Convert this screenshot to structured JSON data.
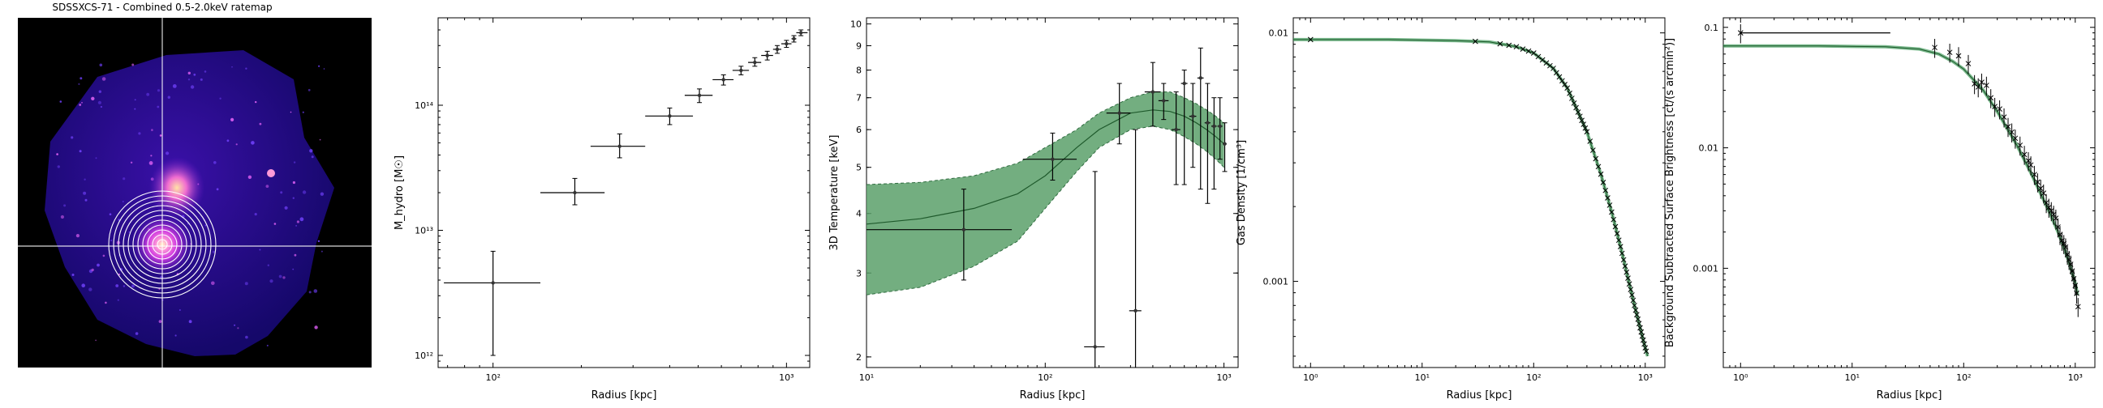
{
  "chart_data": [
    {
      "type": "image",
      "title": "SDSSXCS-71 - Combined 0.5-2.0keV ratemap"
    },
    {
      "type": "scatter",
      "xlabel": "Radius [kpc]",
      "ylabel": "M_hydro [M☉]",
      "xscale": "log",
      "yscale": "log",
      "xlim": [
        65,
        1200
      ],
      "ylim": [
        800000000000.0,
        500000000000000.0
      ],
      "xticks": [
        {
          "v": 100,
          "label": "10²"
        },
        {
          "v": 1000,
          "label": "10³"
        }
      ],
      "yticks": [
        {
          "v": 1000000000000.0,
          "label": "10¹²"
        },
        {
          "v": 10000000000000.0,
          "label": "10¹³"
        },
        {
          "v": 100000000000000.0,
          "label": "10¹⁴"
        }
      ],
      "points": [
        {
          "x": 100,
          "xlo": 68,
          "xhi": 145,
          "y": 3800000000000.0,
          "ylo": 1000000000000.0,
          "yhi": 6800000000000.0
        },
        {
          "x": 190,
          "xlo": 145,
          "xhi": 240,
          "y": 20000000000000.0,
          "ylo": 16000000000000.0,
          "yhi": 26000000000000.0
        },
        {
          "x": 270,
          "xlo": 215,
          "xhi": 330,
          "y": 47000000000000.0,
          "ylo": 38000000000000.0,
          "yhi": 59000000000000.0
        },
        {
          "x": 400,
          "xlo": 330,
          "xhi": 480,
          "y": 82000000000000.0,
          "ylo": 70000000000000.0,
          "yhi": 95000000000000.0
        },
        {
          "x": 505,
          "xlo": 450,
          "xhi": 560,
          "y": 120000000000000.0,
          "ylo": 105000000000000.0,
          "yhi": 135000000000000.0
        },
        {
          "x": 610,
          "xlo": 560,
          "xhi": 660,
          "y": 160000000000000.0,
          "ylo": 145000000000000.0,
          "yhi": 175000000000000.0
        },
        {
          "x": 700,
          "xlo": 655,
          "xhi": 745,
          "y": 190000000000000.0,
          "ylo": 175000000000000.0,
          "yhi": 205000000000000.0
        },
        {
          "x": 780,
          "xlo": 740,
          "xhi": 820,
          "y": 220000000000000.0,
          "ylo": 205000000000000.0,
          "yhi": 240000000000000.0
        },
        {
          "x": 860,
          "xlo": 820,
          "xhi": 900,
          "y": 250000000000000.0,
          "ylo": 230000000000000.0,
          "yhi": 270000000000000.0
        },
        {
          "x": 930,
          "xlo": 900,
          "xhi": 960,
          "y": 280000000000000.0,
          "ylo": 260000000000000.0,
          "yhi": 300000000000000.0
        },
        {
          "x": 1000,
          "xlo": 960,
          "xhi": 1040,
          "y": 310000000000000.0,
          "ylo": 290000000000000.0,
          "yhi": 330000000000000.0
        },
        {
          "x": 1060,
          "xlo": 1040,
          "xhi": 1080,
          "y": 340000000000000.0,
          "ylo": 320000000000000.0,
          "yhi": 360000000000000.0
        },
        {
          "x": 1120,
          "xlo": 1080,
          "xhi": 1180,
          "y": 380000000000000.0,
          "ylo": 360000000000000.0,
          "yhi": 400000000000000.0
        }
      ]
    },
    {
      "type": "line",
      "xlabel": "Radius [kpc]",
      "ylabel": "3D Temperature [keV]",
      "xscale": "log",
      "yscale": "log",
      "xlim": [
        10,
        1200
      ],
      "ylim": [
        1.9,
        10.3
      ],
      "xticks": [
        {
          "v": 10,
          "label": "10¹"
        },
        {
          "v": 100,
          "label": "10²"
        },
        {
          "v": 1000,
          "label": "10³"
        }
      ],
      "yticks": [
        {
          "v": 2,
          "label": "2"
        },
        {
          "v": 3,
          "label": "3"
        },
        {
          "v": 4,
          "label": "4"
        },
        {
          "v": 5,
          "label": "5"
        },
        {
          "v": 6,
          "label": "6"
        },
        {
          "v": 7,
          "label": "7"
        },
        {
          "v": 8,
          "label": "8"
        },
        {
          "v": 9,
          "label": "9"
        },
        {
          "v": 10,
          "label": "10"
        }
      ],
      "model": {
        "x": [
          10,
          20,
          40,
          70,
          100,
          150,
          200,
          300,
          400,
          500,
          600,
          700,
          800,
          900,
          1000
        ],
        "y": [
          3.8,
          3.9,
          4.1,
          4.4,
          4.8,
          5.5,
          6.0,
          6.5,
          6.6,
          6.55,
          6.4,
          6.2,
          6.0,
          5.8,
          5.6
        ],
        "ylo": [
          2.7,
          2.8,
          3.1,
          3.5,
          4.1,
          4.9,
          5.5,
          6.0,
          6.1,
          6.0,
          5.8,
          5.6,
          5.4,
          5.2,
          5.0
        ],
        "yhi": [
          4.6,
          4.65,
          4.8,
          5.1,
          5.5,
          6.0,
          6.5,
          7.0,
          7.2,
          7.2,
          7.0,
          6.8,
          6.6,
          6.4,
          6.2
        ]
      },
      "points": [
        {
          "x": 35,
          "xlo": 10,
          "xhi": 65,
          "y": 3.7,
          "ylo": 2.9,
          "yhi": 4.5
        },
        {
          "x": 110,
          "xlo": 75,
          "xhi": 150,
          "y": 5.2,
          "ylo": 4.7,
          "yhi": 5.9
        },
        {
          "x": 190,
          "xlo": 165,
          "xhi": 215,
          "y": 2.1,
          "ylo": 1.9,
          "yhi": 4.9
        },
        {
          "x": 260,
          "xlo": 220,
          "xhi": 300,
          "y": 6.5,
          "ylo": 5.6,
          "yhi": 7.5
        },
        {
          "x": 320,
          "xlo": 295,
          "xhi": 345,
          "y": 2.5,
          "ylo": 1.9,
          "yhi": 6.0
        },
        {
          "x": 400,
          "xlo": 360,
          "xhi": 440,
          "y": 7.2,
          "ylo": 6.1,
          "yhi": 8.3
        },
        {
          "x": 460,
          "xlo": 430,
          "xhi": 490,
          "y": 6.9,
          "ylo": 6.3,
          "yhi": 7.5
        },
        {
          "x": 540,
          "xlo": 510,
          "xhi": 570,
          "y": 6.0,
          "ylo": 4.6,
          "yhi": 7.2
        },
        {
          "x": 600,
          "xlo": 575,
          "xhi": 625,
          "y": 7.5,
          "ylo": 4.6,
          "yhi": 8.0
        },
        {
          "x": 670,
          "xlo": 640,
          "xhi": 700,
          "y": 6.4,
          "ylo": 5.0,
          "yhi": 7.5
        },
        {
          "x": 740,
          "xlo": 710,
          "xhi": 770,
          "y": 7.7,
          "ylo": 4.5,
          "yhi": 8.9
        },
        {
          "x": 810,
          "xlo": 780,
          "xhi": 840,
          "y": 6.2,
          "ylo": 4.2,
          "yhi": 7.5
        },
        {
          "x": 880,
          "xlo": 850,
          "xhi": 910,
          "y": 6.1,
          "ylo": 4.5,
          "yhi": 7.0
        },
        {
          "x": 950,
          "xlo": 920,
          "xhi": 980,
          "y": 6.1,
          "ylo": 5.2,
          "yhi": 7.0
        },
        {
          "x": 1010,
          "xlo": 985,
          "xhi": 1035,
          "y": 5.6,
          "ylo": 4.9,
          "yhi": 6.2
        }
      ]
    },
    {
      "type": "line",
      "xlabel": "Radius [kpc]",
      "ylabel": "Gas Density [1/cm³]",
      "xscale": "log",
      "yscale": "log",
      "xlim": [
        0.7,
        1500
      ],
      "ylim": [
        0.00045,
        0.0115
      ],
      "xticks": [
        {
          "v": 1,
          "label": "10⁰"
        },
        {
          "v": 10,
          "label": "10¹"
        },
        {
          "v": 100,
          "label": "10²"
        },
        {
          "v": 1000,
          "label": "10³"
        }
      ],
      "yticks": [
        {
          "v": 0.01,
          "label": "0.01"
        },
        {
          "v": 0.001,
          "label": "0.001"
        }
      ],
      "model": {
        "x": [
          0.7,
          5,
          20,
          40,
          70,
          100,
          150,
          200,
          300,
          400,
          500,
          600,
          700,
          800,
          900,
          1000,
          1050
        ],
        "y": [
          0.0094,
          0.0094,
          0.0093,
          0.0092,
          0.0088,
          0.0083,
          0.0072,
          0.006,
          0.004,
          0.0027,
          0.0019,
          0.00138,
          0.00103,
          0.0008,
          0.00065,
          0.00054,
          0.0005
        ]
      },
      "points_x": [
        1,
        30,
        50,
        60,
        70,
        80,
        90,
        100,
        110,
        120,
        130,
        140,
        150,
        160,
        170,
        180,
        190,
        200,
        210,
        220,
        230,
        240,
        250,
        260,
        270,
        280,
        290,
        300,
        320,
        340,
        360,
        380,
        400,
        420,
        440,
        460,
        480,
        500,
        520,
        540,
        560,
        580,
        600,
        620,
        640,
        660,
        680,
        700,
        720,
        740,
        760,
        780,
        800,
        820,
        840,
        860,
        880,
        900,
        920,
        940,
        960,
        980,
        1000,
        1020
      ]
    },
    {
      "type": "line",
      "xlabel": "Radius [kpc]",
      "ylabel": "Background Subtracted Surface Brightness [ct/(s arcmin²)]",
      "xscale": "log",
      "yscale": "log",
      "xlim": [
        0.7,
        1500
      ],
      "ylim": [
        0.00015,
        0.12
      ],
      "xticks": [
        {
          "v": 1,
          "label": "10⁰"
        },
        {
          "v": 10,
          "label": "10¹"
        },
        {
          "v": 100,
          "label": "10²"
        },
        {
          "v": 1000,
          "label": "10³"
        }
      ],
      "yticks": [
        {
          "v": 0.1,
          "label": "0.1"
        },
        {
          "v": 0.01,
          "label": "0.01"
        },
        {
          "v": 0.001,
          "label": "0.001"
        }
      ],
      "model": {
        "x": [
          0.7,
          5,
          20,
          40,
          60,
          80,
          100,
          150,
          200,
          300,
          400,
          500,
          600,
          700,
          800,
          900,
          1000,
          1050
        ],
        "y": [
          0.07,
          0.07,
          0.069,
          0.066,
          0.06,
          0.052,
          0.045,
          0.03,
          0.02,
          0.0105,
          0.0062,
          0.004,
          0.0028,
          0.002,
          0.00145,
          0.00105,
          0.00075,
          0.0006
        ]
      },
      "points": [
        {
          "x": 1,
          "xlo": 1,
          "xhi": 22,
          "y": 0.09,
          "yerr": 0.002
        },
        {
          "x": 55,
          "y": 0.068
        },
        {
          "x": 75,
          "y": 0.062
        },
        {
          "x": 90,
          "y": 0.058
        },
        {
          "x": 110,
          "y": 0.05
        },
        {
          "x": 125,
          "y": 0.034
        },
        {
          "x": 135,
          "y": 0.032
        },
        {
          "x": 145,
          "y": 0.035
        },
        {
          "x": 160,
          "y": 0.033
        },
        {
          "x": 175,
          "y": 0.026
        },
        {
          "x": 190,
          "y": 0.022
        },
        {
          "x": 210,
          "y": 0.021
        },
        {
          "x": 230,
          "y": 0.018
        },
        {
          "x": 250,
          "y": 0.015
        },
        {
          "x": 270,
          "y": 0.0135
        },
        {
          "x": 290,
          "y": 0.012
        },
        {
          "x": 320,
          "y": 0.0105
        },
        {
          "x": 350,
          "y": 0.0088
        },
        {
          "x": 380,
          "y": 0.0078
        },
        {
          "x": 400,
          "y": 0.0072
        },
        {
          "x": 430,
          "y": 0.006
        },
        {
          "x": 460,
          "y": 0.0052
        },
        {
          "x": 490,
          "y": 0.0046
        },
        {
          "x": 520,
          "y": 0.0042
        },
        {
          "x": 550,
          "y": 0.0035
        },
        {
          "x": 580,
          "y": 0.0032
        },
        {
          "x": 610,
          "y": 0.003
        },
        {
          "x": 640,
          "y": 0.0028
        },
        {
          "x": 670,
          "y": 0.0026
        },
        {
          "x": 700,
          "y": 0.0022
        },
        {
          "x": 730,
          "y": 0.0019
        },
        {
          "x": 760,
          "y": 0.0017
        },
        {
          "x": 790,
          "y": 0.0016
        },
        {
          "x": 820,
          "y": 0.0015
        },
        {
          "x": 850,
          "y": 0.0013
        },
        {
          "x": 880,
          "y": 0.00118
        },
        {
          "x": 910,
          "y": 0.00108
        },
        {
          "x": 940,
          "y": 0.00095
        },
        {
          "x": 970,
          "y": 0.00082
        },
        {
          "x": 1000,
          "y": 0.00072
        },
        {
          "x": 1030,
          "y": 0.00062
        },
        {
          "x": 1060,
          "y": 0.00048
        }
      ]
    }
  ]
}
